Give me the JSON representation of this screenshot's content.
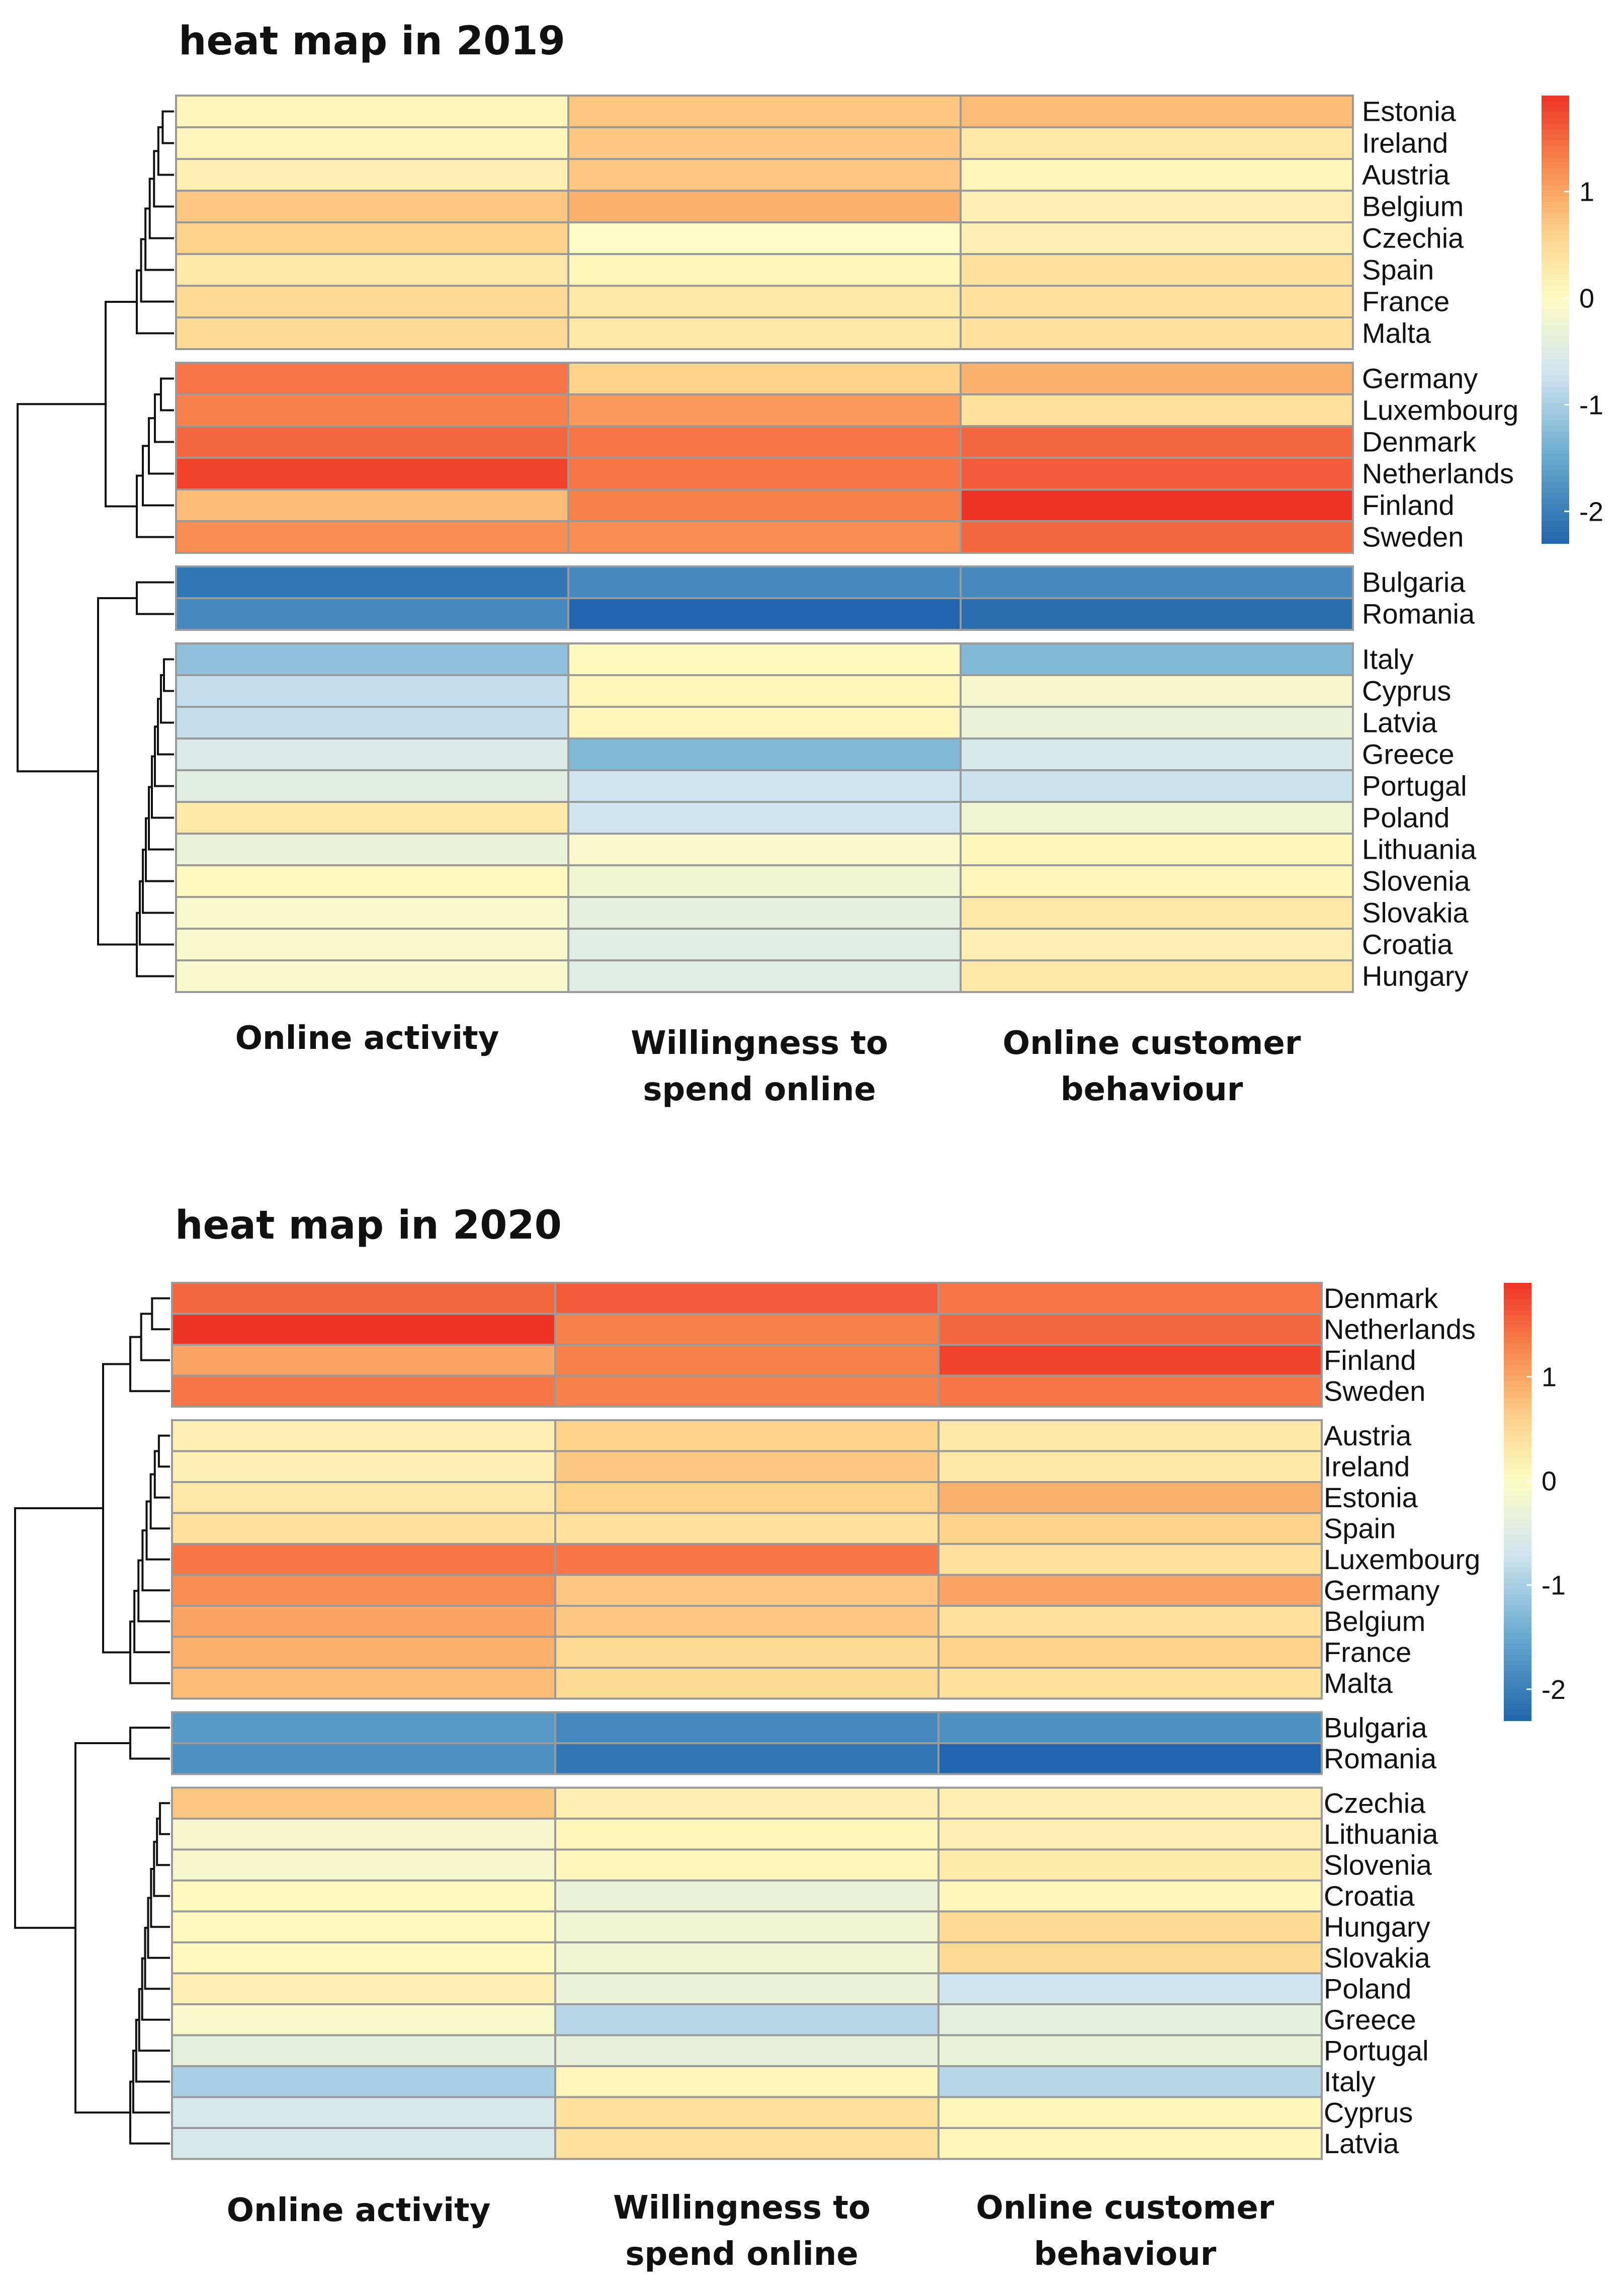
{
  "colors": {
    "low": "#2166ac",
    "mid_low": "#67a9cf",
    "neutral_low": "#d1e5f0",
    "neutral": "#fdfcc4",
    "neutral_high": "#fdd38a",
    "mid_high": "#f98e52",
    "high": "#ee3424",
    "cell_border": "#9a9a9a"
  },
  "chart_data": [
    {
      "type": "heatmap",
      "title": "heat map in 2019",
      "columns": [
        "Online activity",
        "Willingness to spend online",
        "Online customer behaviour"
      ],
      "column_label_lines": [
        [
          "Online activity"
        ],
        [
          "Willingness to",
          "spend online"
        ],
        [
          "Online customer",
          "behaviour"
        ]
      ],
      "clusters": [
        [
          "Estonia",
          "Ireland",
          "Austria",
          "Belgium",
          "Czechia",
          "Spain",
          "France",
          "Malta"
        ],
        [
          "Germany",
          "Luxembourg",
          "Denmark",
          "Netherlands",
          "Finland",
          "Sweden"
        ],
        [
          "Bulgaria",
          "Romania"
        ],
        [
          "Italy",
          "Cyprus",
          "Latvia",
          "Greece",
          "Portugal",
          "Poland",
          "Lithuania",
          "Slovenia",
          "Slovakia",
          "Croatia",
          "Hungary"
        ]
      ],
      "values": {
        "Estonia": [
          0.1,
          0.7,
          0.8
        ],
        "Ireland": [
          0.1,
          0.7,
          0.3
        ],
        "Austria": [
          0.2,
          0.7,
          0.1
        ],
        "Belgium": [
          0.7,
          0.9,
          0.2
        ],
        "Czechia": [
          0.6,
          0.0,
          0.2
        ],
        "Spain": [
          0.3,
          0.1,
          0.4
        ],
        "France": [
          0.5,
          0.3,
          0.4
        ],
        "Malta": [
          0.5,
          0.3,
          0.4
        ],
        "Germany": [
          1.4,
          0.6,
          0.9
        ],
        "Luxembourg": [
          1.3,
          1.1,
          0.4
        ],
        "Denmark": [
          1.5,
          1.4,
          1.5
        ],
        "Netherlands": [
          1.8,
          1.4,
          1.6
        ],
        "Finland": [
          0.8,
          1.3,
          1.9
        ],
        "Sweden": [
          1.2,
          1.2,
          1.5
        ],
        "Bulgaria": [
          -2.1,
          -1.9,
          -1.9
        ],
        "Romania": [
          -1.9,
          -2.4,
          -2.2
        ],
        "Italy": [
          -1.2,
          0.05,
          -1.3
        ],
        "Cyprus": [
          -0.8,
          0.1,
          -0.15
        ],
        "Latvia": [
          -0.8,
          0.1,
          -0.3
        ],
        "Greece": [
          -0.55,
          -1.3,
          -0.6
        ],
        "Portugal": [
          -0.45,
          -0.7,
          -0.75
        ],
        "Poland": [
          0.3,
          -0.7,
          -0.2
        ],
        "Lithuania": [
          -0.3,
          -0.1,
          0.1
        ],
        "Slovenia": [
          0.05,
          -0.2,
          0.1
        ],
        "Slovakia": [
          -0.1,
          -0.4,
          0.3
        ],
        "Croatia": [
          -0.1,
          -0.5,
          0.2
        ],
        "Hungary": [
          -0.1,
          -0.5,
          0.3
        ]
      },
      "legend": {
        "ticks": [
          1,
          0,
          -1,
          -2
        ],
        "tick_labels": [
          "1",
          "0",
          "-1",
          "-2"
        ],
        "range": [
          -2.3,
          1.9
        ]
      }
    },
    {
      "type": "heatmap",
      "title": "heat map in 2020",
      "columns": [
        "Online activity",
        "Willingness to spend online",
        "Online customer behaviour"
      ],
      "column_label_lines": [
        [
          "Online activity"
        ],
        [
          "Willingness to",
          "spend online"
        ],
        [
          "Online customer",
          "behaviour"
        ]
      ],
      "clusters": [
        [
          "Denmark",
          "Netherlands",
          "Finland",
          "Sweden"
        ],
        [
          "Austria",
          "Ireland",
          "Estonia",
          "Spain",
          "Luxembourg",
          "Germany",
          "Belgium",
          "France",
          "Malta"
        ],
        [
          "Bulgaria",
          "Romania"
        ],
        [
          "Czechia",
          "Lithuania",
          "Slovenia",
          "Croatia",
          "Hungary",
          "Slovakia",
          "Poland",
          "Greece",
          "Portugal",
          "Italy",
          "Cyprus",
          "Latvia"
        ]
      ],
      "values": {
        "Denmark": [
          1.5,
          1.6,
          1.4
        ],
        "Netherlands": [
          1.9,
          1.3,
          1.5
        ],
        "Finland": [
          1.0,
          1.3,
          1.8
        ],
        "Sweden": [
          1.4,
          1.3,
          1.4
        ],
        "Austria": [
          0.2,
          0.6,
          0.3
        ],
        "Ireland": [
          0.2,
          0.7,
          0.3
        ],
        "Estonia": [
          0.3,
          0.6,
          0.9
        ],
        "Spain": [
          0.4,
          0.4,
          0.6
        ],
        "Luxembourg": [
          1.4,
          1.4,
          0.4
        ],
        "Germany": [
          1.2,
          0.7,
          1.0
        ],
        "Belgium": [
          1.0,
          0.7,
          0.4
        ],
        "France": [
          0.9,
          0.5,
          0.6
        ],
        "Malta": [
          0.8,
          0.5,
          0.4
        ],
        "Bulgaria": [
          -1.7,
          -1.9,
          -1.8
        ],
        "Romania": [
          -1.8,
          -2.1,
          -2.3
        ],
        "Czechia": [
          0.7,
          0.2,
          0.2
        ],
        "Lithuania": [
          -0.15,
          0.1,
          0.2
        ],
        "Slovenia": [
          -0.15,
          0.1,
          0.25
        ],
        "Croatia": [
          0.05,
          -0.3,
          0.1
        ],
        "Hungary": [
          0.05,
          -0.2,
          0.5
        ],
        "Slovakia": [
          0.05,
          -0.2,
          0.5
        ],
        "Poland": [
          0.2,
          -0.3,
          -0.7
        ],
        "Greece": [
          -0.1,
          -0.9,
          -0.4
        ],
        "Portugal": [
          -0.4,
          -0.35,
          -0.3
        ],
        "Italy": [
          -1.0,
          0.1,
          -0.9
        ],
        "Cyprus": [
          -0.6,
          0.4,
          0.1
        ],
        "Latvia": [
          -0.6,
          0.4,
          0.1
        ]
      },
      "legend": {
        "ticks": [
          1,
          0,
          -1,
          -2
        ],
        "tick_labels": [
          "1",
          "0",
          "-1",
          "-2"
        ],
        "range": [
          -2.3,
          1.9
        ]
      }
    }
  ]
}
